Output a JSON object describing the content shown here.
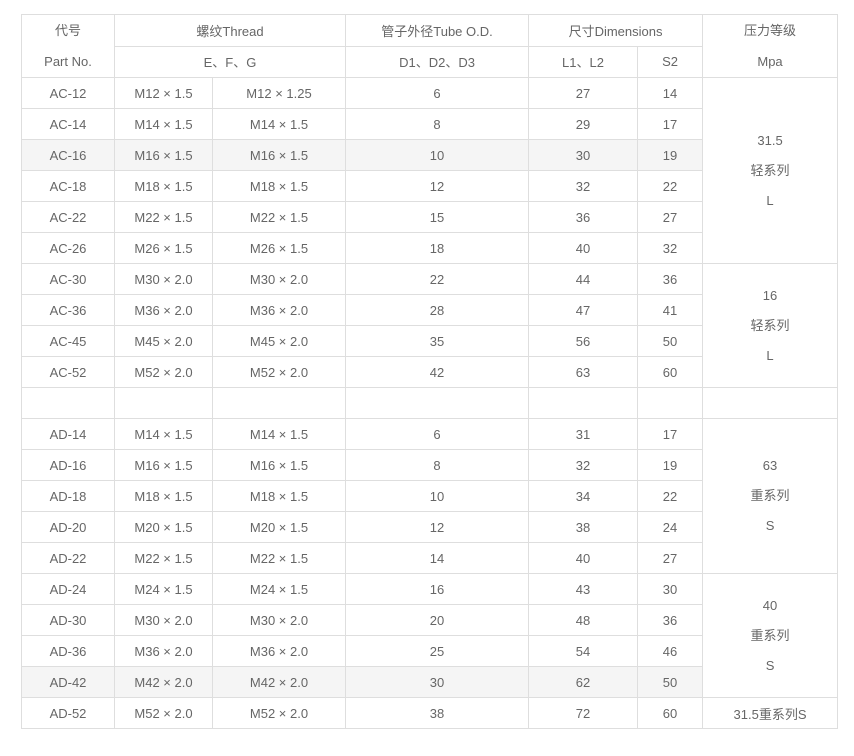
{
  "colors": {
    "page_background": "#ffffff",
    "cell_border": "#dedede",
    "outer_border": "#c9c9c9",
    "text": "#666666",
    "shaded_row_background": "#f5f5f5"
  },
  "table": {
    "header": {
      "part_zh": "代号",
      "part_en": "Part No.",
      "thread_label": "螺纹Thread",
      "thread_sub": "E、F、G",
      "tube_label": "管子外径Tube O.D.",
      "tube_sub": "D1、D2、D3",
      "dims_label": "尺寸Dimensions",
      "dims_sub1": "L1、L2",
      "dims_sub2": "S2",
      "pressure_zh": "压力等级",
      "pressure_en": "Mpa"
    },
    "rows": [
      {
        "part": "AC-12",
        "e": "M12 × 1.5",
        "f": "M12 × 1.25",
        "od": "6",
        "l": "27",
        "s2": "14",
        "shaded": false
      },
      {
        "part": "AC-14",
        "e": "M14 × 1.5",
        "f": "M14 × 1.5",
        "od": "8",
        "l": "29",
        "s2": "17",
        "shaded": false
      },
      {
        "part": "AC-16",
        "e": "M16 × 1.5",
        "f": "M16 × 1.5",
        "od": "10",
        "l": "30",
        "s2": "19",
        "shaded": true
      },
      {
        "part": "AC-18",
        "e": "M18 × 1.5",
        "f": "M18 × 1.5",
        "od": "12",
        "l": "32",
        "s2": "22",
        "shaded": false
      },
      {
        "part": "AC-22",
        "e": "M22 × 1.5",
        "f": "M22 × 1.5",
        "od": "15",
        "l": "36",
        "s2": "27",
        "shaded": false
      },
      {
        "part": "AC-26",
        "e": "M26 × 1.5",
        "f": "M26 × 1.5",
        "od": "18",
        "l": "40",
        "s2": "32",
        "shaded": false
      },
      {
        "part": "AC-30",
        "e": "M30 × 2.0",
        "f": "M30 × 2.0",
        "od": "22",
        "l": "44",
        "s2": "36",
        "shaded": false
      },
      {
        "part": "AC-36",
        "e": "M36 × 2.0",
        "f": "M36 × 2.0",
        "od": "28",
        "l": "47",
        "s2": "41",
        "shaded": false
      },
      {
        "part": "AC-45",
        "e": "M45 × 2.0",
        "f": "M45 × 2.0",
        "od": "35",
        "l": "56",
        "s2": "50",
        "shaded": false
      },
      {
        "part": "AC-52",
        "e": "M52 × 2.0",
        "f": "M52 × 2.0",
        "od": "42",
        "l": "63",
        "s2": "60",
        "shaded": false
      },
      {
        "part": "",
        "e": "",
        "f": "",
        "od": "",
        "l": "",
        "s2": "",
        "shaded": false
      },
      {
        "part": "AD-14",
        "e": "M14 × 1.5",
        "f": "M14 × 1.5",
        "od": "6",
        "l": "31",
        "s2": "17",
        "shaded": false
      },
      {
        "part": "AD-16",
        "e": "M16 × 1.5",
        "f": "M16 × 1.5",
        "od": "8",
        "l": "32",
        "s2": "19",
        "shaded": false
      },
      {
        "part": "AD-18",
        "e": "M18 × 1.5",
        "f": "M18 × 1.5",
        "od": "10",
        "l": "34",
        "s2": "22",
        "shaded": false
      },
      {
        "part": "AD-20",
        "e": "M20 × 1.5",
        "f": "M20 × 1.5",
        "od": "12",
        "l": "38",
        "s2": "24",
        "shaded": false
      },
      {
        "part": "AD-22",
        "e": "M22 × 1.5",
        "f": "M22 × 1.5",
        "od": "14",
        "l": "40",
        "s2": "27",
        "shaded": false
      },
      {
        "part": "AD-24",
        "e": "M24 × 1.5",
        "f": "M24 × 1.5",
        "od": "16",
        "l": "43",
        "s2": "30",
        "shaded": false
      },
      {
        "part": "AD-30",
        "e": "M30 × 2.0",
        "f": "M30 × 2.0",
        "od": "20",
        "l": "48",
        "s2": "36",
        "shaded": false
      },
      {
        "part": "AD-36",
        "e": "M36 × 2.0",
        "f": "M36 × 2.0",
        "od": "25",
        "l": "54",
        "s2": "46",
        "shaded": false
      },
      {
        "part": "AD-42",
        "e": "M42 × 2.0",
        "f": "M42 × 2.0",
        "od": "30",
        "l": "62",
        "s2": "50",
        "shaded": true
      },
      {
        "part": "AD-52",
        "e": "M52 × 2.0",
        "f": "M52 × 2.0",
        "od": "38",
        "l": "72",
        "s2": "60",
        "shaded": false
      }
    ],
    "pressure_blocks": [
      {
        "lines": [
          "31.5",
          "轻系列",
          "L"
        ],
        "rowspan": 6
      },
      {
        "lines": [
          "16",
          "轻系列",
          "L"
        ],
        "rowspan": 4
      },
      {
        "lines": [
          ""
        ],
        "rowspan": 1
      },
      {
        "lines": [
          "63",
          "重系列",
          "S"
        ],
        "rowspan": 5
      },
      {
        "lines": [
          "40",
          "重系列",
          "S"
        ],
        "rowspan": 4
      },
      {
        "lines": [
          "31.5重系列S"
        ],
        "rowspan": 1
      }
    ]
  }
}
